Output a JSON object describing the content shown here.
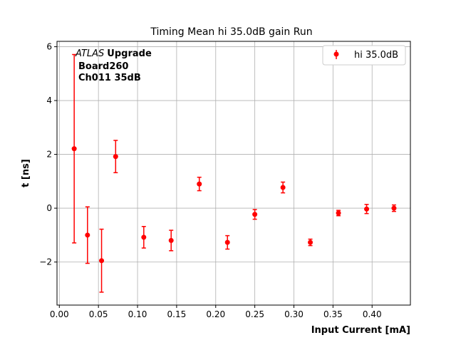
{
  "chart_data": {
    "type": "scatter",
    "title": "Timing Mean hi 35.0dB gain Run",
    "xlabel": "Input Current [mA]",
    "ylabel": "t [ns]",
    "xlim": [
      -0.003,
      0.449
    ],
    "ylim": [
      -3.6,
      6.2
    ],
    "xticks": [
      0.0,
      0.05,
      0.1,
      0.15,
      0.2,
      0.25,
      0.3,
      0.35,
      0.4
    ],
    "xtick_labels": [
      "0.00",
      "0.05",
      "0.10",
      "0.15",
      "0.20",
      "0.25",
      "0.30",
      "0.35",
      "0.40"
    ],
    "yticks": [
      -2,
      0,
      2,
      4,
      6
    ],
    "ytick_labels": [
      "−2",
      "0",
      "2",
      "4",
      "6"
    ],
    "grid": true,
    "legend_position": "top-right",
    "annotation": {
      "italic": "ATLAS",
      "bold": "Upgrade",
      "line2": "Board260",
      "line3": "Ch011 35dB"
    },
    "series": [
      {
        "name": "hi 35.0dB",
        "color": "#ff0000",
        "x": [
          0.019,
          0.036,
          0.054,
          0.072,
          0.108,
          0.143,
          0.179,
          0.215,
          0.25,
          0.286,
          0.321,
          0.357,
          0.393,
          0.428
        ],
        "y": [
          2.21,
          -1.0,
          -1.95,
          1.92,
          -1.08,
          -1.2,
          0.9,
          -1.27,
          -0.23,
          0.77,
          -1.27,
          -0.18,
          -0.03,
          0.0
        ],
        "yerr": [
          3.5,
          1.05,
          1.17,
          0.6,
          0.4,
          0.38,
          0.25,
          0.25,
          0.18,
          0.2,
          0.12,
          0.1,
          0.17,
          0.12
        ]
      }
    ]
  }
}
